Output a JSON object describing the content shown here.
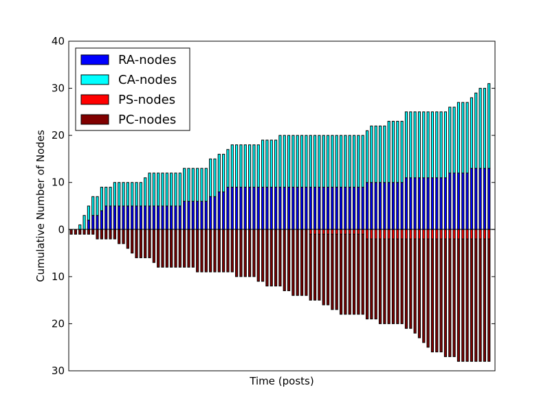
{
  "colors": {
    "ra": "#0000ff",
    "ca": "#00ffff",
    "ps": "#ff0000",
    "pc": "#800000",
    "frame": "#000000"
  },
  "chart_data": {
    "type": "bar",
    "stacked_diverging": true,
    "xlabel": "Time (posts)",
    "ylabel": "Cumulative Number of Nodes",
    "ylim": [
      -30,
      40
    ],
    "yticks": [
      40,
      30,
      20,
      10,
      0,
      -10,
      -20,
      -30
    ],
    "ytick_labels": [
      "40",
      "30",
      "20",
      "10",
      "0",
      "10",
      "20",
      "30"
    ],
    "grid": false,
    "legend": {
      "position": "top-left",
      "entries": [
        "RA-nodes",
        "CA-nodes",
        "PS-nodes",
        "PC-nodes"
      ]
    },
    "series": [
      {
        "name": "RA-nodes",
        "values": [
          0,
          0,
          0,
          0,
          2,
          3,
          3,
          4,
          5,
          5,
          5,
          5,
          5,
          5,
          5,
          5,
          5,
          5,
          5,
          5,
          5,
          5,
          5,
          5,
          5,
          5,
          6,
          6,
          6,
          6,
          6,
          6,
          7,
          7,
          8,
          8,
          9,
          9,
          9,
          9,
          9,
          9,
          9,
          9,
          9,
          9,
          9,
          9,
          9,
          9,
          9,
          9,
          9,
          9,
          9,
          9,
          9,
          9,
          9,
          9,
          9,
          9,
          9,
          9,
          9,
          9,
          9,
          9,
          10,
          10,
          10,
          10,
          10,
          10,
          10,
          10,
          10,
          11,
          11,
          11,
          11,
          11,
          11,
          11,
          11,
          11,
          11,
          12,
          12,
          12,
          12,
          12,
          13,
          13,
          13,
          13,
          13
        ]
      },
      {
        "name": "CA-nodes",
        "values": [
          0,
          0,
          1,
          3,
          3,
          4,
          4,
          5,
          4,
          4,
          5,
          5,
          5,
          5,
          5,
          5,
          5,
          6,
          7,
          7,
          7,
          7,
          7,
          7,
          7,
          7,
          7,
          7,
          7,
          7,
          7,
          7,
          8,
          8,
          8,
          8,
          8,
          9,
          9,
          9,
          9,
          9,
          9,
          9,
          10,
          10,
          10,
          10,
          11,
          11,
          11,
          11,
          11,
          11,
          11,
          11,
          11,
          11,
          11,
          11,
          11,
          11,
          11,
          11,
          11,
          11,
          11,
          11,
          11,
          12,
          12,
          12,
          12,
          13,
          13,
          13,
          13,
          14,
          14,
          14,
          14,
          14,
          14,
          14,
          14,
          14,
          14,
          14,
          14,
          15,
          15,
          15,
          15,
          16,
          17,
          17,
          18
        ]
      },
      {
        "name": "PS-nodes",
        "values": [
          0,
          0,
          0,
          0,
          0,
          0,
          0,
          0,
          0,
          0,
          0,
          0,
          0,
          0,
          0,
          0,
          0,
          0,
          0,
          0,
          0,
          0,
          0,
          0,
          0,
          0,
          0,
          0,
          0,
          0,
          0,
          0,
          0,
          0,
          0,
          0,
          0,
          0,
          0,
          0,
          0,
          0,
          0,
          0,
          0,
          0,
          0,
          0,
          0,
          0,
          0,
          0,
          0,
          0,
          0,
          1,
          1,
          1,
          1,
          1,
          1,
          1,
          1,
          1,
          1,
          1,
          1,
          1,
          2,
          2,
          2,
          2,
          2,
          2,
          2,
          2,
          2,
          2,
          2,
          2,
          2,
          2,
          2,
          2,
          2,
          2,
          2,
          2,
          2,
          2,
          2,
          2,
          2,
          2,
          2,
          2,
          2
        ]
      },
      {
        "name": "PC-nodes",
        "values": [
          1,
          1,
          1,
          1,
          1,
          1,
          2,
          2,
          2,
          2,
          2,
          3,
          3,
          4,
          5,
          6,
          6,
          6,
          6,
          7,
          8,
          8,
          8,
          8,
          8,
          8,
          8,
          8,
          8,
          9,
          9,
          9,
          9,
          9,
          9,
          9,
          9,
          9,
          10,
          10,
          10,
          10,
          10,
          11,
          11,
          12,
          12,
          12,
          12,
          13,
          13,
          14,
          14,
          14,
          14,
          14,
          14,
          14,
          15,
          15,
          16,
          16,
          17,
          17,
          17,
          17,
          17,
          17,
          17,
          17,
          17,
          18,
          18,
          18,
          18,
          18,
          18,
          19,
          19,
          20,
          21,
          22,
          23,
          24,
          24,
          24,
          25,
          25,
          25,
          26,
          26,
          26,
          26,
          26,
          26,
          26,
          26
        ]
      }
    ]
  }
}
